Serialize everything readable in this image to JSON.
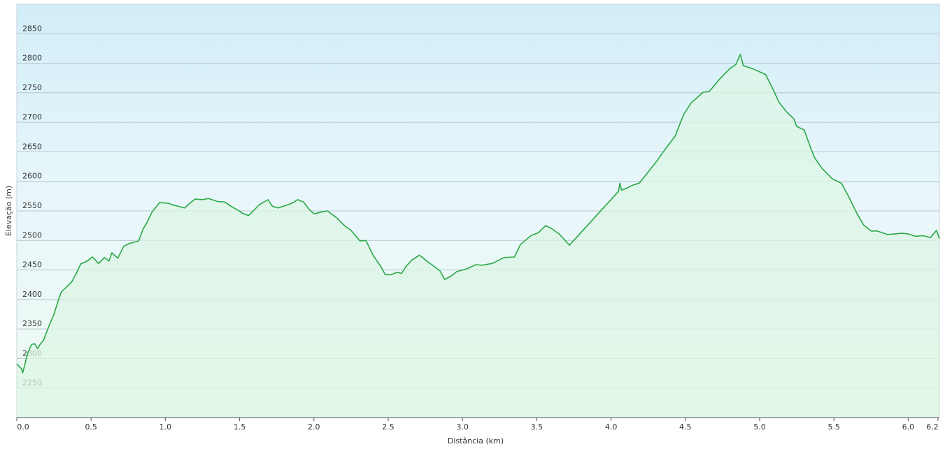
{
  "chart_data": {
    "type": "area-line",
    "x_label": "Distância  (km)",
    "y_label": "Elevação (m)",
    "color": "#2aa847",
    "fill": "#dcf5e4",
    "xlim": [
      0,
      6.21
    ],
    "ylim": [
      2200,
      2900
    ],
    "xticks": [
      {
        "value": 0,
        "label": "0.0"
      },
      0.5,
      {
        "value": 1,
        "label": "1.0"
      },
      1.5,
      {
        "value": 2,
        "label": "2.0"
      },
      2.5,
      {
        "value": 3,
        "label": "3.0"
      },
      3.5,
      {
        "value": 4,
        "label": "4.0"
      },
      4.5,
      {
        "value": 5,
        "label": "5.0"
      },
      5.5,
      {
        "value": 6,
        "label": "6.0"
      },
      6.2
    ],
    "yticks": [
      2250,
      2300,
      2350,
      2400,
      2450,
      2500,
      2550,
      2600,
      2650,
      2700,
      2750,
      2800,
      2850
    ],
    "grid": true,
    "x": [
      0,
      0.03,
      0.04,
      0.075,
      0.1,
      0.12,
      0.14,
      0.16,
      0.18,
      0.22,
      0.25,
      0.28,
      0.3,
      0.33,
      0.37,
      0.4,
      0.43,
      0.48,
      0.51,
      0.55,
      0.59,
      0.62,
      0.64,
      0.68,
      0.72,
      0.76,
      0.82,
      0.85,
      0.88,
      0.91,
      0.96,
      1.02,
      1.05,
      1.1,
      1.13,
      1.16,
      1.2,
      1.25,
      1.29,
      1.35,
      1.4,
      1.44,
      1.49,
      1.52,
      1.56,
      1.6,
      1.63,
      1.69,
      1.72,
      1.76,
      1.82,
      1.86,
      1.89,
      1.93,
      1.97,
      2.0,
      2.05,
      2.09,
      2.15,
      2.21,
      2.25,
      2.31,
      2.35,
      2.4,
      2.45,
      2.48,
      2.52,
      2.56,
      2.59,
      2.62,
      2.66,
      2.71,
      2.76,
      2.82,
      2.85,
      2.88,
      2.92,
      2.96,
      3.03,
      3.09,
      3.13,
      3.2,
      3.28,
      3.35,
      3.39,
      3.46,
      3.51,
      3.56,
      3.6,
      3.65,
      3.72,
      4.05,
      4.06,
      4.07,
      4.1,
      4.15,
      4.19,
      4.25,
      4.31,
      4.36,
      4.43,
      4.49,
      4.54,
      4.62,
      4.66,
      4.73,
      4.8,
      4.84,
      4.87,
      4.89,
      4.95,
      5.04,
      5.09,
      5.13,
      5.18,
      5.23,
      5.25,
      5.3,
      5.34,
      5.37,
      5.42,
      5.49,
      5.55,
      5.6,
      5.65,
      5.7,
      5.75,
      5.79,
      5.86,
      5.96,
      6.0,
      6.05,
      6.1,
      6.15,
      6.19,
      6.21
    ],
    "values": [
      2291,
      2283,
      2276,
      2310,
      2324,
      2325,
      2317,
      2325,
      2331,
      2357,
      2375,
      2399,
      2413,
      2420,
      2430,
      2444,
      2460,
      2466,
      2472,
      2461,
      2471,
      2465,
      2479,
      2470,
      2490,
      2495,
      2499,
      2519,
      2532,
      2548,
      2564,
      2563,
      2560,
      2557,
      2555,
      2562,
      2570,
      2569,
      2571,
      2566,
      2565,
      2558,
      2551,
      2546,
      2542,
      2552,
      2560,
      2569,
      2558,
      2555,
      2560,
      2564,
      2569,
      2565,
      2552,
      2545,
      2548,
      2550,
      2539,
      2524,
      2517,
      2499,
      2500,
      2474,
      2456,
      2442,
      2442,
      2446,
      2444,
      2456,
      2467,
      2475,
      2465,
      2454,
      2448,
      2434,
      2439,
      2447,
      2452,
      2459,
      2458,
      2461,
      2471,
      2472,
      2493,
      2508,
      2513,
      2525,
      2520,
      2511,
      2492,
      2583,
      2597,
      2585,
      2588,
      2594,
      2597,
      2616,
      2635,
      2653,
      2676,
      2714,
      2733,
      2751,
      2752,
      2773,
      2791,
      2798,
      2815,
      2796,
      2791,
      2781,
      2756,
      2734,
      2718,
      2706,
      2693,
      2687,
      2659,
      2640,
      2622,
      2604,
      2597,
      2574,
      2548,
      2526,
      2516,
      2516,
      2510,
      2512,
      2511,
      2507,
      2508,
      2505,
      2517,
      2503
    ]
  }
}
